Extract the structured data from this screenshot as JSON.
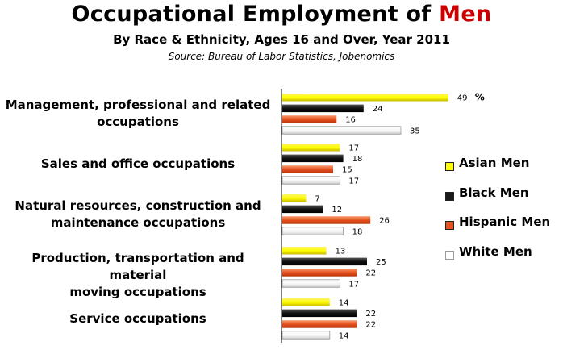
{
  "title": {
    "prefix": "Occupational Employment of ",
    "highlight": "Men"
  },
  "subtitle": "By Race & Ethnicity, Ages 16 and Over, Year 2011",
  "source": "Source: Bureau of Labor Statistics, Jobenomics",
  "unit_label": "%",
  "chart_data": {
    "type": "bar",
    "orientation": "horizontal",
    "categories": [
      [
        "Management, professional and related",
        "occupations"
      ],
      [
        "Sales and office occupations"
      ],
      [
        "Natural resources, construction and",
        "maintenance occupations"
      ],
      [
        "Production, transportation and material",
        "moving occupations"
      ],
      [
        "Service occupations"
      ]
    ],
    "series": [
      {
        "name": "Asian Men",
        "color": "#ffff00",
        "values": [
          49,
          17,
          7,
          13,
          14
        ]
      },
      {
        "name": "Black Men",
        "color": "#1a1a1a",
        "values": [
          24,
          18,
          12,
          25,
          22
        ]
      },
      {
        "name": "Hispanic Men",
        "color": "#e8501e",
        "values": [
          16,
          15,
          26,
          22,
          22
        ]
      },
      {
        "name": "White Men",
        "color": "#ffffff",
        "values": [
          35,
          17,
          18,
          17,
          14
        ]
      }
    ],
    "xlim": [
      0,
      49
    ],
    "grid": false,
    "legend_position": "right"
  }
}
